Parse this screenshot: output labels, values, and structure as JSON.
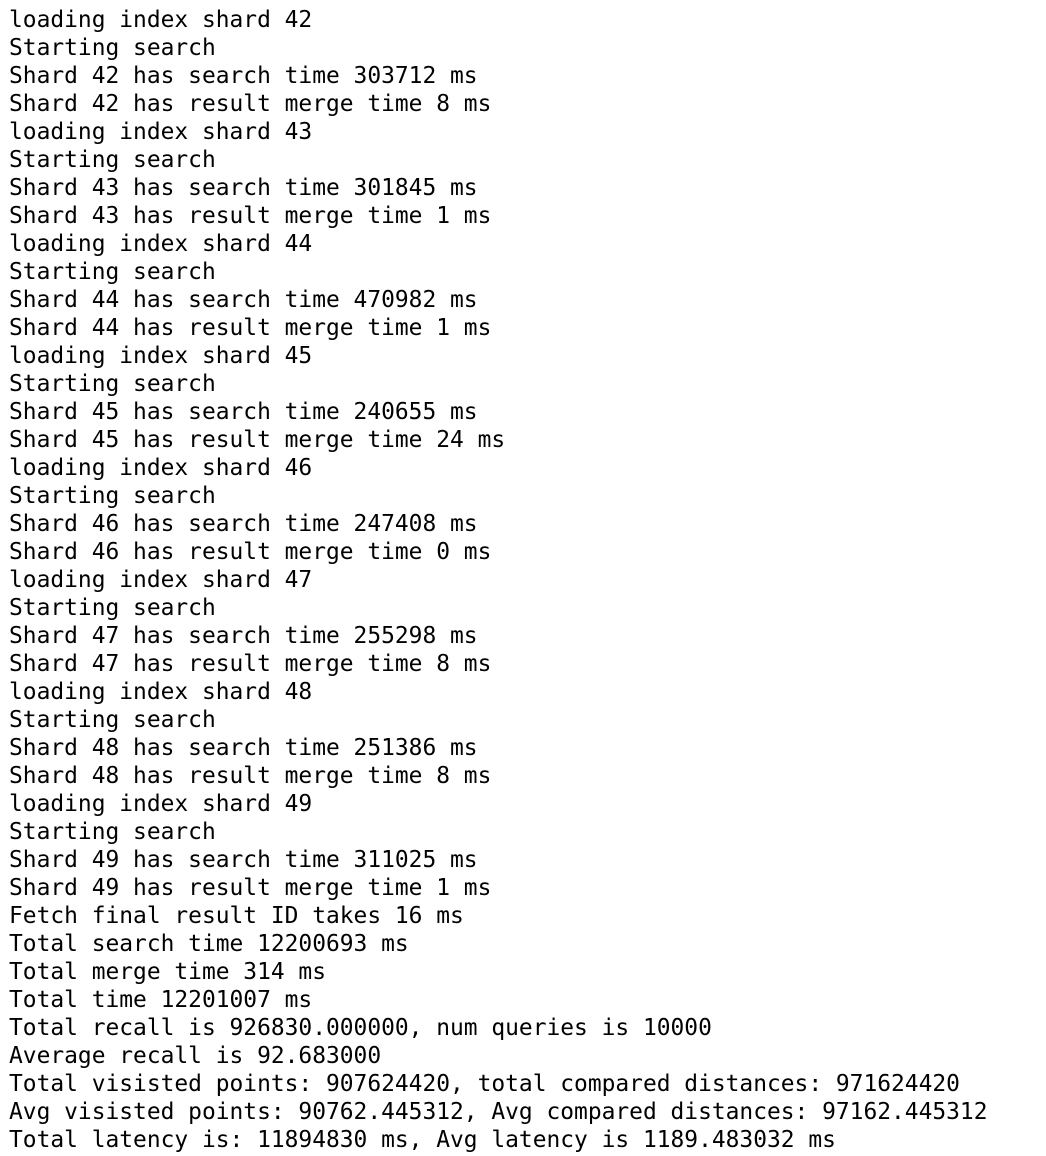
{
  "lines": [
    "loading index shard 42",
    "Starting search",
    "Shard 42 has search time 303712 ms",
    "Shard 42 has result merge time 8 ms",
    "loading index shard 43",
    "Starting search",
    "Shard 43 has search time 301845 ms",
    "Shard 43 has result merge time 1 ms",
    "loading index shard 44",
    "Starting search",
    "Shard 44 has search time 470982 ms",
    "Shard 44 has result merge time 1 ms",
    "loading index shard 45",
    "Starting search",
    "Shard 45 has search time 240655 ms",
    "Shard 45 has result merge time 24 ms",
    "loading index shard 46",
    "Starting search",
    "Shard 46 has search time 247408 ms",
    "Shard 46 has result merge time 0 ms",
    "loading index shard 47",
    "Starting search",
    "Shard 47 has search time 255298 ms",
    "Shard 47 has result merge time 8 ms",
    "loading index shard 48",
    "Starting search",
    "Shard 48 has search time 251386 ms",
    "Shard 48 has result merge time 8 ms",
    "loading index shard 49",
    "Starting search",
    "Shard 49 has search time 311025 ms",
    "Shard 49 has result merge time 1 ms",
    "Fetch final result ID takes 16 ms",
    "Total search time 12200693 ms",
    "Total merge time 314 ms",
    "Total time 12201007 ms",
    "Total recall is 926830.000000, num queries is 10000",
    "Average recall is 92.683000",
    "Total visisted points: 907624420, total compared distances: 971624420",
    "Avg visisted points: 90762.445312, Avg compared distances: 97162.445312",
    "Total latency is: 11894830 ms, Avg latency is 1189.483032 ms"
  ]
}
